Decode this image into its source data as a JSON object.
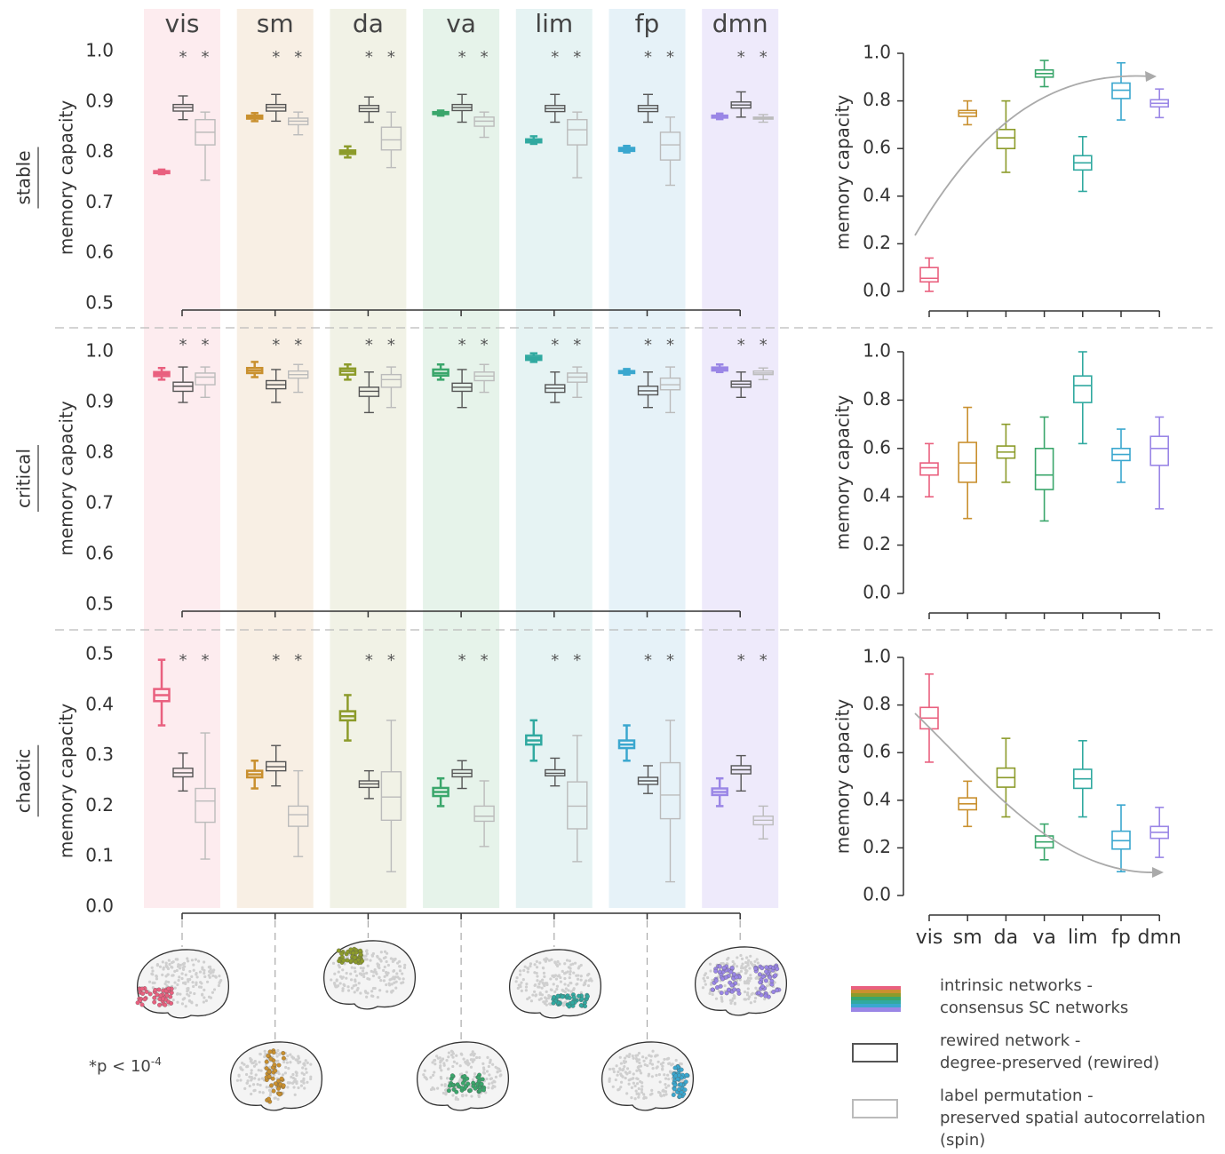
{
  "chart_data": [
    {
      "type": "box",
      "row_label": "stable",
      "ylabel": "memory capacity",
      "ylim": [
        0.5,
        1.0
      ],
      "yticks": [
        0.5,
        0.6,
        0.7,
        0.8,
        0.9,
        {
          "value": 1,
          "label": "1.0"
        }
      ],
      "significance": "*",
      "categories": [
        "vis",
        "sm",
        "da",
        "va",
        "lim",
        "fp",
        "dmn"
      ],
      "colors": [
        "#e9607f",
        "#c9902f",
        "#8c9b2a",
        "#3aa66b",
        "#31a9a0",
        "#3aa7cf",
        "#9a86e6"
      ],
      "band_colors": [
        "#fdecef",
        "#f8efe4",
        "#f1f2e6",
        "#e6f3ea",
        "#e6f3f3",
        "#e6f2f8",
        "#eeeafb"
      ],
      "series": [
        {
          "name": "intrinsic networks -\nconsensus SC networks",
          "values": [
            [
              0.757,
              0.759,
              0.761,
              0.763,
              0.766
            ],
            [
              0.862,
              0.867,
              0.87,
              0.873,
              0.878
            ],
            [
              0.79,
              0.797,
              0.801,
              0.804,
              0.812
            ],
            [
              0.873,
              0.876,
              0.878,
              0.88,
              0.883
            ],
            [
              0.817,
              0.82,
              0.823,
              0.826,
              0.832
            ],
            [
              0.8,
              0.803,
              0.806,
              0.809,
              0.813
            ],
            [
              0.866,
              0.869,
              0.871,
              0.873,
              0.877
            ]
          ]
        },
        {
          "name": "rewired network -\ndegree-preserved (rewired)",
          "color": "#555555",
          "values": [
            [
              0.865,
              0.882,
              0.889,
              0.895,
              0.912
            ],
            [
              0.862,
              0.882,
              0.889,
              0.895,
              0.915
            ],
            [
              0.86,
              0.881,
              0.887,
              0.893,
              0.91
            ],
            [
              0.86,
              0.883,
              0.889,
              0.895,
              0.915
            ],
            [
              0.86,
              0.881,
              0.887,
              0.893,
              0.915
            ],
            [
              0.86,
              0.881,
              0.887,
              0.893,
              0.915
            ],
            [
              0.87,
              0.888,
              0.894,
              0.9,
              0.92
            ]
          ]
        },
        {
          "name": "label permutation -\npreserved spatial autocorrelation\n(spin)",
          "color": "#bbbbbb",
          "values": [
            [
              0.745,
              0.815,
              0.84,
              0.865,
              0.88
            ],
            [
              0.835,
              0.855,
              0.862,
              0.868,
              0.88
            ],
            [
              0.77,
              0.805,
              0.825,
              0.85,
              0.88
            ],
            [
              0.83,
              0.852,
              0.862,
              0.87,
              0.88
            ],
            [
              0.75,
              0.815,
              0.845,
              0.865,
              0.88
            ],
            [
              0.735,
              0.785,
              0.815,
              0.84,
              0.87
            ],
            [
              0.86,
              0.866,
              0.868,
              0.87,
              0.875
            ]
          ]
        }
      ]
    },
    {
      "type": "box",
      "row_label": "critical",
      "ylabel": "memory capacity",
      "ylim": [
        0.5,
        1.0
      ],
      "yticks": [
        0.5,
        0.6,
        0.7,
        0.8,
        0.9,
        {
          "value": 1,
          "label": "1.0"
        }
      ],
      "significance": "*",
      "series": [
        {
          "values": [
            [
              0.945,
              0.952,
              0.956,
              0.96,
              0.968
            ],
            [
              0.95,
              0.958,
              0.963,
              0.968,
              0.98
            ],
            [
              0.945,
              0.955,
              0.962,
              0.967,
              0.975
            ],
            [
              0.945,
              0.953,
              0.958,
              0.965,
              0.975
            ],
            [
              0.98,
              0.984,
              0.988,
              0.992,
              0.997
            ],
            [
              0.955,
              0.958,
              0.96,
              0.962,
              0.966
            ],
            [
              0.96,
              0.963,
              0.966,
              0.969,
              0.975
            ]
          ]
        },
        {
          "color": "#555555",
          "values": [
            [
              0.9,
              0.922,
              0.932,
              0.94,
              0.97
            ],
            [
              0.9,
              0.927,
              0.935,
              0.943,
              0.965
            ],
            [
              0.88,
              0.912,
              0.922,
              0.93,
              0.96
            ],
            [
              0.89,
              0.922,
              0.93,
              0.938,
              0.965
            ],
            [
              0.9,
              0.92,
              0.928,
              0.935,
              0.96
            ],
            [
              0.89,
              0.915,
              0.923,
              0.932,
              0.96
            ],
            [
              0.91,
              0.93,
              0.936,
              0.942,
              0.96
            ]
          ]
        },
        {
          "color": "#bbbbbb",
          "values": [
            [
              0.91,
              0.935,
              0.95,
              0.958,
              0.97
            ],
            [
              0.92,
              0.948,
              0.955,
              0.962,
              0.975
            ],
            [
              0.89,
              0.93,
              0.945,
              0.955,
              0.97
            ],
            [
              0.92,
              0.943,
              0.952,
              0.96,
              0.975
            ],
            [
              0.91,
              0.94,
              0.95,
              0.958,
              0.97
            ],
            [
              0.88,
              0.925,
              0.935,
              0.948,
              0.97
            ],
            [
              0.945,
              0.955,
              0.958,
              0.962,
              0.968
            ]
          ]
        }
      ]
    },
    {
      "type": "box",
      "row_label": "chaotic",
      "ylabel": "memory capacity",
      "ylim": [
        0,
        0.5
      ],
      "yticks": [
        {
          "value": 0,
          "label": "0.0"
        },
        0.1,
        0.2,
        0.3,
        0.4,
        0.5
      ],
      "significance": "*",
      "series": [
        {
          "values": [
            [
              0.36,
              0.408,
              0.42,
              0.432,
              0.49
            ],
            [
              0.235,
              0.257,
              0.263,
              0.27,
              0.29
            ],
            [
              0.33,
              0.37,
              0.378,
              0.388,
              0.42
            ],
            [
              0.2,
              0.22,
              0.228,
              0.236,
              0.255
            ],
            [
              0.29,
              0.322,
              0.33,
              0.34,
              0.37
            ],
            [
              0.29,
              0.315,
              0.322,
              0.33,
              0.36
            ],
            [
              0.2,
              0.222,
              0.228,
              0.235,
              0.255
            ]
          ]
        },
        {
          "color": "#555555",
          "values": [
            [
              0.23,
              0.258,
              0.266,
              0.275,
              0.305
            ],
            [
              0.24,
              0.27,
              0.278,
              0.288,
              0.32
            ],
            [
              0.215,
              0.237,
              0.244,
              0.25,
              0.27
            ],
            [
              0.235,
              0.258,
              0.265,
              0.272,
              0.29
            ],
            [
              0.24,
              0.26,
              0.265,
              0.272,
              0.295
            ],
            [
              0.225,
              0.243,
              0.25,
              0.257,
              0.28
            ],
            [
              0.23,
              0.264,
              0.272,
              0.28,
              0.3
            ]
          ]
        },
        {
          "color": "#bbbbbb",
          "values": [
            [
              0.095,
              0.168,
              0.21,
              0.235,
              0.345
            ],
            [
              0.1,
              0.16,
              0.183,
              0.2,
              0.27
            ],
            [
              0.07,
              0.172,
              0.218,
              0.268,
              0.37
            ],
            [
              0.12,
              0.17,
              0.18,
              0.2,
              0.25
            ],
            [
              0.09,
              0.155,
              0.2,
              0.248,
              0.34
            ],
            [
              0.05,
              0.175,
              0.222,
              0.286,
              0.37
            ],
            [
              0.135,
              0.163,
              0.172,
              0.18,
              0.2
            ]
          ]
        }
      ]
    },
    {
      "type": "box",
      "ylabel": "memory capacity",
      "ylim": [
        0,
        1
      ],
      "yticks": [
        {
          "value": 0,
          "label": "0.0"
        },
        0.2,
        0.4,
        0.6,
        0.8,
        {
          "value": 1,
          "label": "1.0"
        }
      ],
      "values": [
        [
          0,
          0.04,
          0.055,
          0.1,
          0.14
        ],
        [
          0.7,
          0.735,
          0.75,
          0.76,
          0.8
        ],
        [
          0.5,
          0.6,
          0.645,
          0.68,
          0.8
        ],
        [
          0.86,
          0.9,
          0.915,
          0.93,
          0.97
        ],
        [
          0.42,
          0.51,
          0.54,
          0.57,
          0.65
        ],
        [
          0.72,
          0.81,
          0.845,
          0.875,
          0.96
        ],
        [
          0.73,
          0.775,
          0.79,
          0.805,
          0.85
        ]
      ]
    },
    {
      "type": "box",
      "ylabel": "memory capacity",
      "ylim": [
        0,
        1
      ],
      "yticks": [
        {
          "value": 0,
          "label": "0.0"
        },
        0.2,
        0.4,
        0.6,
        0.8,
        {
          "value": 1,
          "label": "1.0"
        }
      ],
      "values": [
        [
          0.4,
          0.49,
          0.52,
          0.54,
          0.62
        ],
        [
          0.31,
          0.46,
          0.54,
          0.625,
          0.77
        ],
        [
          0.46,
          0.56,
          0.585,
          0.61,
          0.7
        ],
        [
          0.3,
          0.43,
          0.49,
          0.6,
          0.73
        ],
        [
          0.62,
          0.79,
          0.86,
          0.9,
          1.0
        ],
        [
          0.46,
          0.55,
          0.575,
          0.6,
          0.68
        ],
        [
          0.35,
          0.53,
          0.6,
          0.65,
          0.73
        ]
      ]
    },
    {
      "type": "box",
      "ylabel": "memory capacity",
      "ylim": [
        0,
        1
      ],
      "yticks": [
        {
          "value": 0,
          "label": "0.0"
        },
        0.2,
        0.4,
        0.6,
        0.8,
        {
          "value": 1,
          "label": "1.0"
        }
      ],
      "categories": [
        "vis",
        "sm",
        "da",
        "va",
        "lim",
        "fp",
        "dmn"
      ],
      "values": [
        [
          0.56,
          0.7,
          0.745,
          0.79,
          0.93
        ],
        [
          0.29,
          0.36,
          0.385,
          0.41,
          0.48
        ],
        [
          0.33,
          0.455,
          0.495,
          0.535,
          0.66
        ],
        [
          0.15,
          0.2,
          0.225,
          0.25,
          0.3
        ],
        [
          0.33,
          0.45,
          0.49,
          0.53,
          0.65
        ],
        [
          0.1,
          0.195,
          0.23,
          0.27,
          0.38
        ],
        [
          0.16,
          0.24,
          0.265,
          0.29,
          0.37
        ]
      ]
    }
  ],
  "footnote": {
    "text": "*p < 10",
    "exponent": "-4"
  }
}
